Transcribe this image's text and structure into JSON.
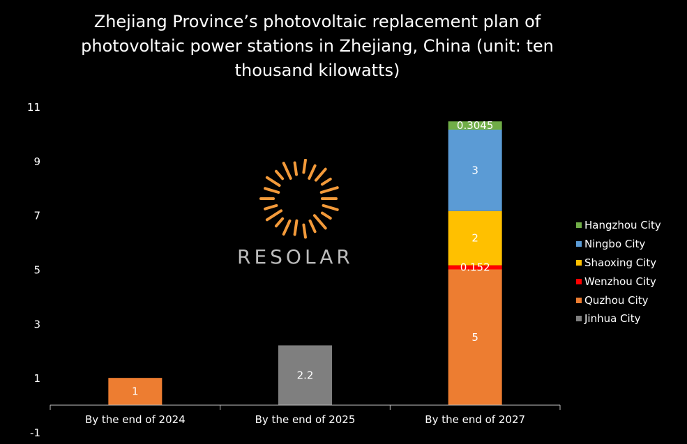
{
  "title": "Zhejiang Province’s photovoltaic replacement plan of photovoltaic power stations in Zhejiang, China (unit: ten thousand kilowatts)",
  "watermark": {
    "text": "RESOLAR",
    "color": "#f39a3a"
  },
  "chart_data": {
    "type": "bar",
    "stacked": true,
    "title": "Zhejiang Province’s photovoltaic replacement plan of photovoltaic power stations in Zhejiang, China (unit: ten thousand kilowatts)",
    "categories": [
      "By the end of 2024",
      "By the end of 2025",
      "By the end of 2027"
    ],
    "ylim": [
      -1,
      11
    ],
    "yticks": [
      -1,
      1,
      3,
      5,
      7,
      9,
      11
    ],
    "grid": false,
    "legend_placement": "right",
    "series": [
      {
        "name": "Jinhua City",
        "color": "#7f7f7f",
        "values": [
          0,
          2.2,
          0
        ],
        "labels": [
          "",
          "2.2",
          ""
        ]
      },
      {
        "name": "Quzhou City",
        "color": "#ed7d31",
        "values": [
          1,
          0,
          5
        ],
        "labels": [
          "1",
          "",
          "5"
        ]
      },
      {
        "name": "Wenzhou City",
        "color": "#ff0000",
        "values": [
          0,
          0,
          0.152
        ],
        "labels": [
          "",
          "",
          "0.152"
        ]
      },
      {
        "name": "Shaoxing City",
        "color": "#ffc000",
        "values": [
          0,
          0,
          2
        ],
        "labels": [
          "",
          "",
          "2"
        ]
      },
      {
        "name": "Ningbo City",
        "color": "#5b9bd5",
        "values": [
          0,
          0,
          3
        ],
        "labels": [
          "",
          "",
          "3"
        ]
      },
      {
        "name": "Hangzhou City",
        "color": "#70ad47",
        "values": [
          0,
          0,
          0.3045
        ],
        "labels": [
          "",
          "",
          "0.3045"
        ]
      }
    ],
    "legend_order": [
      "Hangzhou City",
      "Ningbo City",
      "Shaoxing City",
      "Wenzhou City",
      "Quzhou City",
      "Jinhua City"
    ]
  }
}
